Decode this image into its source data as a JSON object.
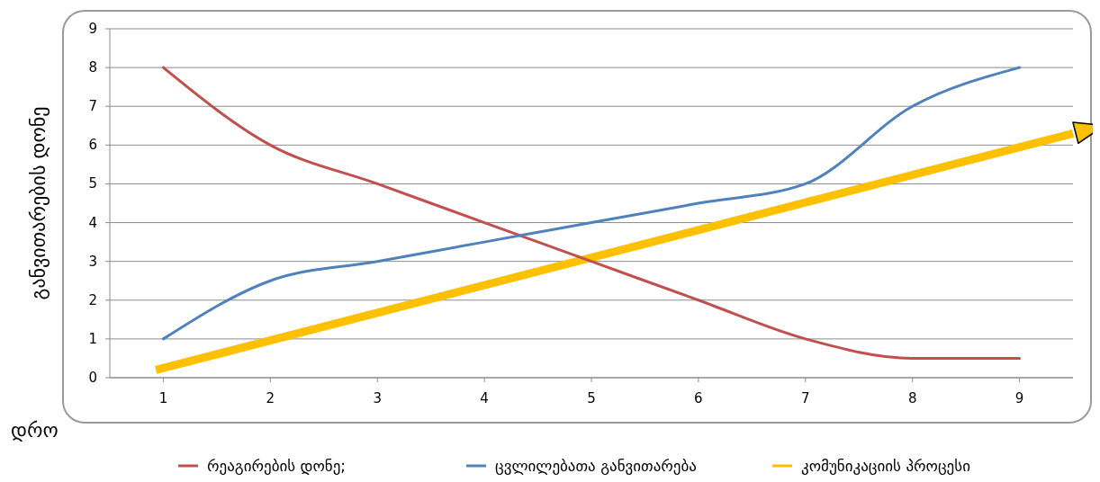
{
  "chart_data": {
    "type": "line",
    "xlabel": "დრო",
    "ylabel": "განვითარების დონე",
    "x": [
      1,
      2,
      3,
      4,
      5,
      6,
      7,
      8,
      9
    ],
    "xlim": [
      0.5,
      9.5
    ],
    "xticks": [
      1,
      2,
      3,
      4,
      5,
      6,
      7,
      8,
      9
    ],
    "ylim": [
      0,
      9
    ],
    "yticks": [
      0,
      1,
      2,
      3,
      4,
      5,
      6,
      7,
      8,
      9
    ],
    "grid": "y",
    "legend": "bottom",
    "series": [
      {
        "name": "რეაგირების დონე;",
        "color": "#c0504d",
        "values": [
          8,
          6,
          5,
          4,
          3,
          2,
          1,
          0.5,
          0.5
        ]
      },
      {
        "name": "ცვლილებათა განვითარება",
        "color": "#4f81bd",
        "values": [
          1,
          2.5,
          3,
          3.5,
          4,
          4.5,
          5,
          7,
          8
        ]
      },
      {
        "name": "კომუნიკაციის პროცესი",
        "color": "#ffc000",
        "type": "line",
        "x": [
          0.93,
          9.5
        ],
        "values": [
          0.2,
          6.3
        ]
      }
    ]
  }
}
